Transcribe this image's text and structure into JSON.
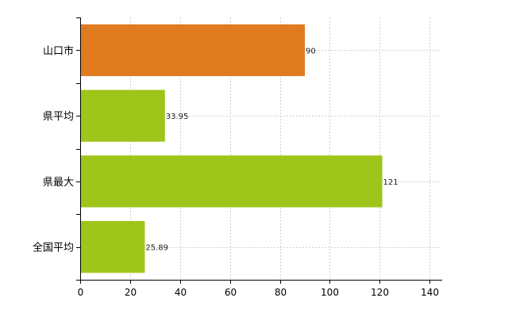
{
  "chart_data": {
    "type": "bar",
    "orientation": "horizontal",
    "categories": [
      "山口市",
      "県平均",
      "県最大",
      "全国平均"
    ],
    "values": [
      90,
      33.95,
      121,
      25.89
    ],
    "data_labels": [
      "90",
      "33.95",
      "121",
      "25.89"
    ],
    "bar_colors": [
      "#e07b20",
      "#9ec519",
      "#9ec519",
      "#9ec519"
    ],
    "xlim": [
      0,
      145
    ],
    "x_ticks": [
      0,
      20,
      40,
      60,
      80,
      100,
      120,
      140
    ],
    "grid": true,
    "legend": "none",
    "title": "",
    "xlabel": "",
    "ylabel": ""
  }
}
